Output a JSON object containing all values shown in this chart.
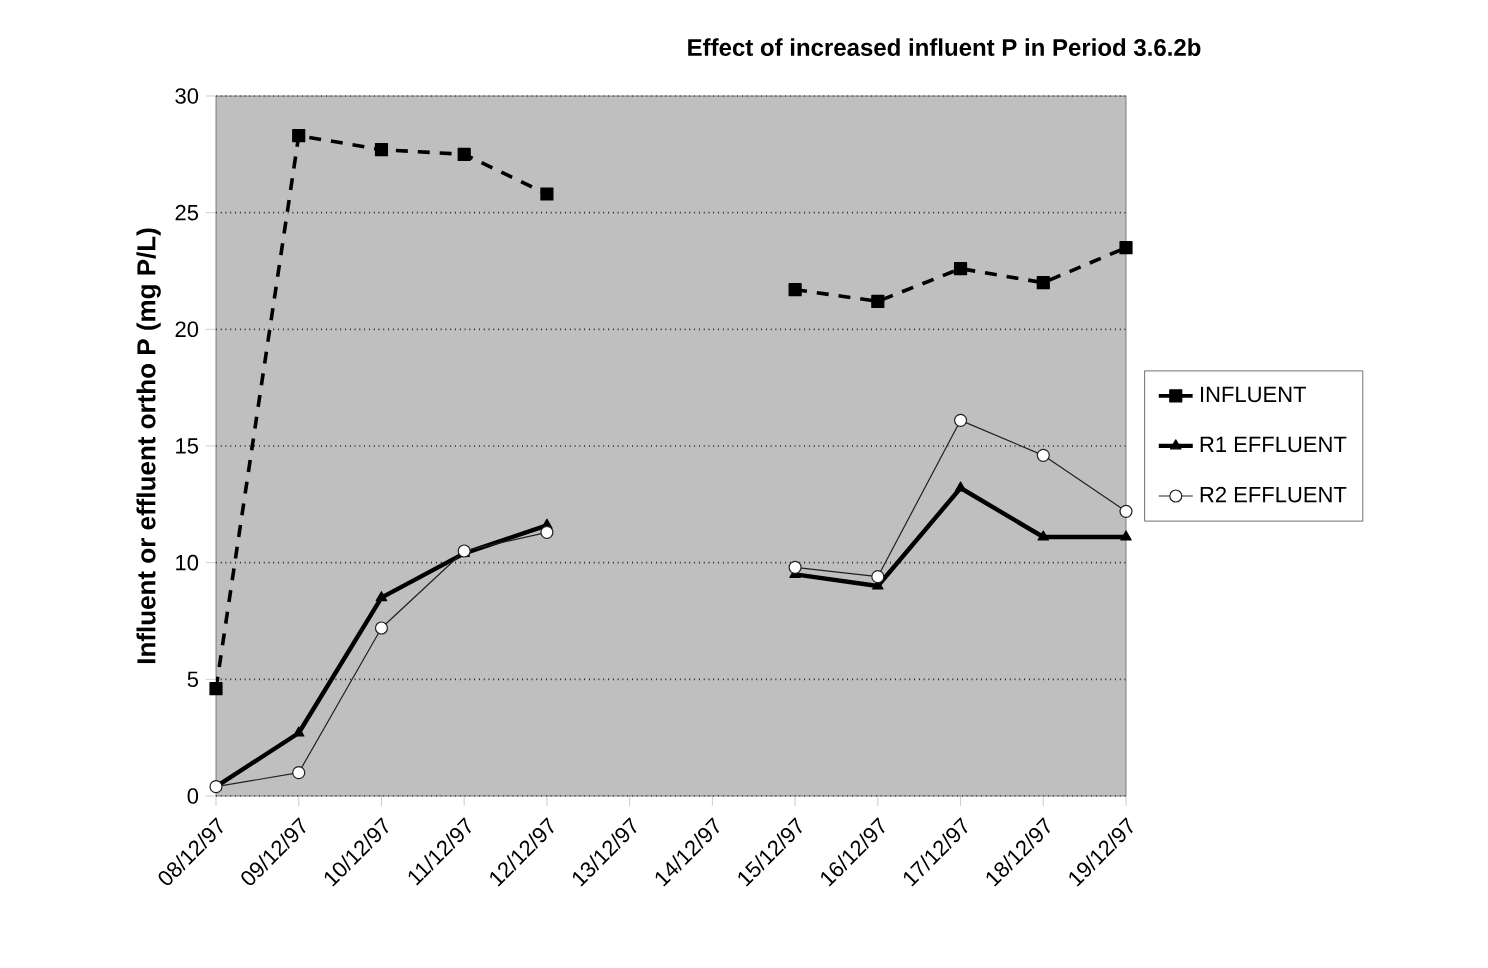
{
  "chart_data": {
    "type": "line",
    "title": "Effect of increased influent P in Period 3.6.2b",
    "ylabel": "Influent or effluent ortho P (mg P/L)",
    "categories": [
      "08/12/97",
      "09/12/97",
      "10/12/97",
      "11/12/97",
      "12/12/97",
      "13/12/97",
      "14/12/97",
      "15/12/97",
      "16/12/97",
      "17/12/97",
      "18/12/97",
      "19/12/97"
    ],
    "series": [
      {
        "name": "INFLUENT",
        "color": "#000000",
        "marker": "square",
        "line_style": "dashed",
        "values": [
          4.6,
          28.3,
          27.7,
          27.5,
          25.8,
          null,
          null,
          21.7,
          21.2,
          22.6,
          22.0,
          23.5
        ]
      },
      {
        "name": "R1 EFFLUENT",
        "color": "#000000",
        "marker": "triangle",
        "line_style": "solid",
        "values": [
          0.4,
          2.7,
          8.5,
          10.4,
          11.6,
          null,
          null,
          9.5,
          9.0,
          13.2,
          11.1,
          11.1
        ]
      },
      {
        "name": "R2 EFFLUENT",
        "color": "#202020",
        "marker": "circle",
        "line_style": "solid",
        "values": [
          0.4,
          1.0,
          7.2,
          10.5,
          11.3,
          null,
          null,
          9.8,
          9.4,
          16.1,
          14.6,
          12.2
        ]
      }
    ],
    "ylim": [
      0,
      30
    ],
    "yticks": [
      0,
      5,
      10,
      15,
      20,
      25,
      30
    ],
    "grid": "y",
    "legend": "right"
  }
}
